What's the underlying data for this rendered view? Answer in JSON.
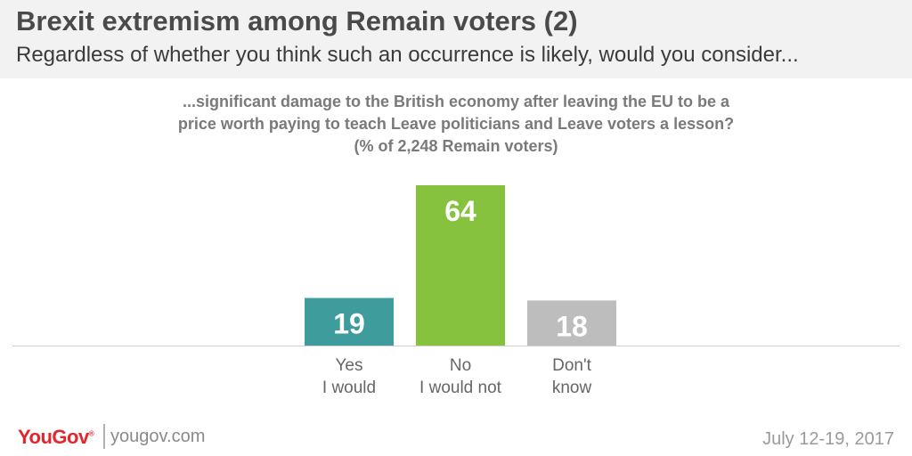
{
  "header": {
    "title": "Brexit extremism among Remain voters (2)",
    "subtitle": "Regardless of whether you think such an occurrence is likely, would you consider..."
  },
  "question": {
    "line1": "...significant damage to the British economy after leaving the EU to be a",
    "line2": "price worth paying to teach Leave politicians and Leave voters a lesson?",
    "line3": "(% of 2,248 Remain voters)"
  },
  "chart_data": {
    "type": "bar",
    "categories": [
      [
        "Yes",
        "I would"
      ],
      [
        "No",
        "I would not"
      ],
      [
        "Don't",
        "know"
      ]
    ],
    "values": [
      19,
      64,
      18
    ],
    "colors": [
      "#3f9c9c",
      "#86c23e",
      "#bdbdbd"
    ],
    "title": "",
    "xlabel": "",
    "ylabel": "",
    "ylim": [
      0,
      64
    ],
    "grid": false,
    "legend": "none"
  },
  "footer": {
    "logo": "YouGov",
    "logo_mark": "®",
    "site": "yougov.com",
    "date": "July 12-19, 2017"
  }
}
